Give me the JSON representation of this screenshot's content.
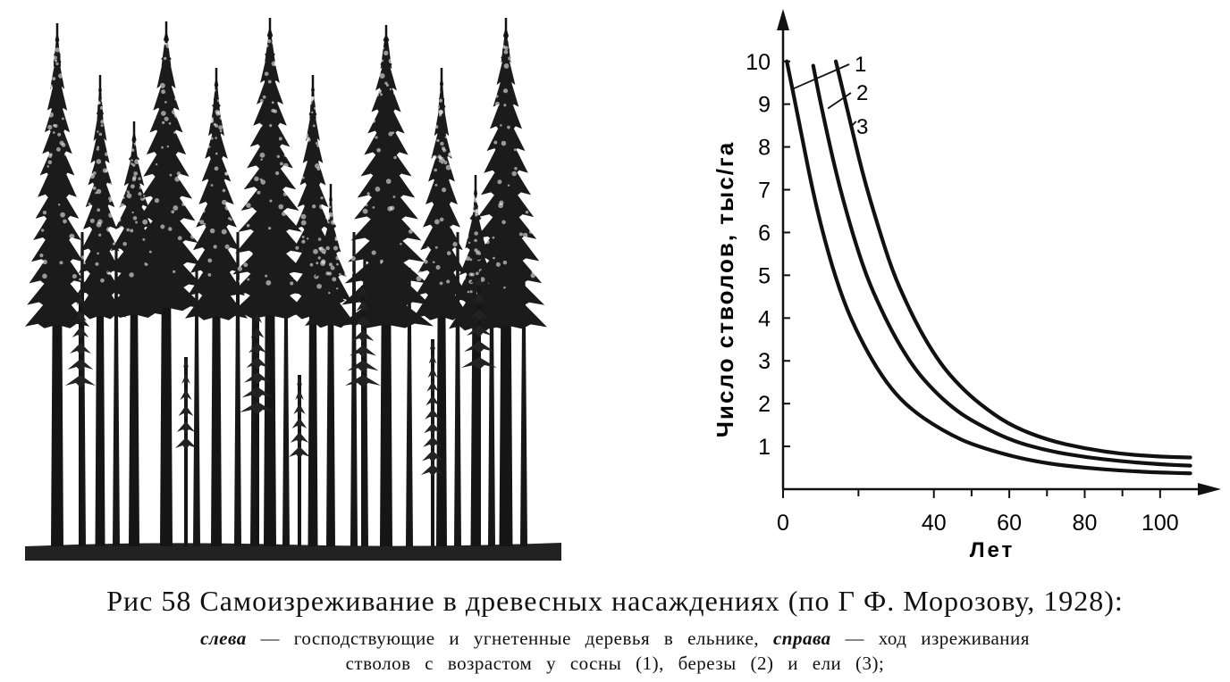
{
  "figure": {
    "caption_main": "Рис 58 Самоизреживание в древесных насаждениях (по Г Ф. Морозову, 1928):",
    "caption_left_word": "слева",
    "caption_left_text": "— господствующие и угнетенные деревья в ельнике,",
    "caption_right_word": "справа",
    "caption_right_text": "— ход изреживания",
    "caption_line2": "стволов с возрастом у сосны (1), березы (2) и ели (3);"
  },
  "chart_data": {
    "type": "line",
    "xlabel": "Лет",
    "ylabel": "Число стволов, тыс/га",
    "xlim": [
      0,
      110
    ],
    "ylim": [
      0,
      10.6
    ],
    "x_ticks": [
      0,
      40,
      60,
      80,
      100
    ],
    "y_ticks": [
      1,
      2,
      3,
      4,
      5,
      6,
      7,
      8,
      9,
      10
    ],
    "series": [
      {
        "name": "1",
        "x": [
          1,
          4,
          8,
          12,
          16,
          20,
          25,
          30,
          35,
          40,
          45,
          50,
          60,
          70,
          80,
          90,
          100,
          108
        ],
        "y": [
          10.0,
          8.7,
          6.9,
          5.5,
          4.4,
          3.6,
          2.8,
          2.2,
          1.8,
          1.5,
          1.25,
          1.05,
          0.78,
          0.6,
          0.5,
          0.43,
          0.39,
          0.37
        ]
      },
      {
        "name": "2",
        "x": [
          8,
          10,
          14,
          18,
          22,
          26,
          30,
          35,
          40,
          45,
          50,
          60,
          70,
          80,
          90,
          100,
          108
        ],
        "y": [
          9.9,
          9.0,
          7.4,
          6.1,
          5.0,
          4.2,
          3.5,
          2.8,
          2.3,
          1.9,
          1.6,
          1.15,
          0.9,
          0.75,
          0.65,
          0.58,
          0.55
        ]
      },
      {
        "name": "3",
        "x": [
          14,
          17,
          21,
          25,
          29,
          33,
          37,
          42,
          47,
          52,
          60,
          70,
          80,
          90,
          100,
          108
        ],
        "y": [
          10.0,
          8.9,
          7.4,
          6.2,
          5.1,
          4.3,
          3.6,
          2.9,
          2.4,
          2.0,
          1.5,
          1.15,
          0.95,
          0.82,
          0.76,
          0.74
        ]
      }
    ]
  }
}
